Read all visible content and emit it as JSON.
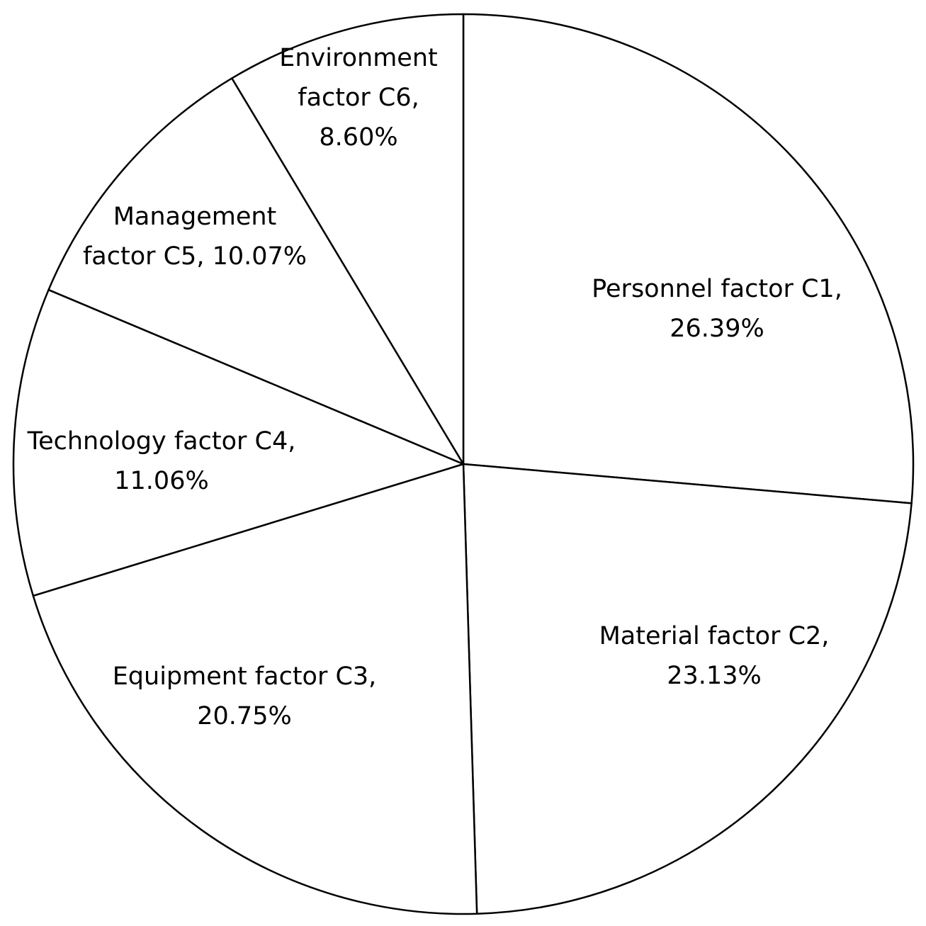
{
  "chart_data": {
    "type": "pie",
    "title": "",
    "slices": [
      {
        "label": "Personnel factor C1,",
        "value": 26.39,
        "value_label": "26.39%"
      },
      {
        "label": "Material factor C2,",
        "value": 23.13,
        "value_label": "23.13%"
      },
      {
        "label": "Equipment factor C3,",
        "value": 20.75,
        "value_label": "20.75%"
      },
      {
        "label": "Technology factor C4,",
        "value": 11.06,
        "value_label": "11.06%"
      },
      {
        "label": "Management factor C5, 10.07%",
        "value": 10.07,
        "value_label": ""
      },
      {
        "label": "Environment factor C6,",
        "value": 8.6,
        "value_label": "8.60%"
      }
    ],
    "start_angle_deg": 0,
    "direction": "clockwise",
    "fill_color": "#ffffff",
    "stroke_color": "#000000",
    "legend": "none"
  }
}
